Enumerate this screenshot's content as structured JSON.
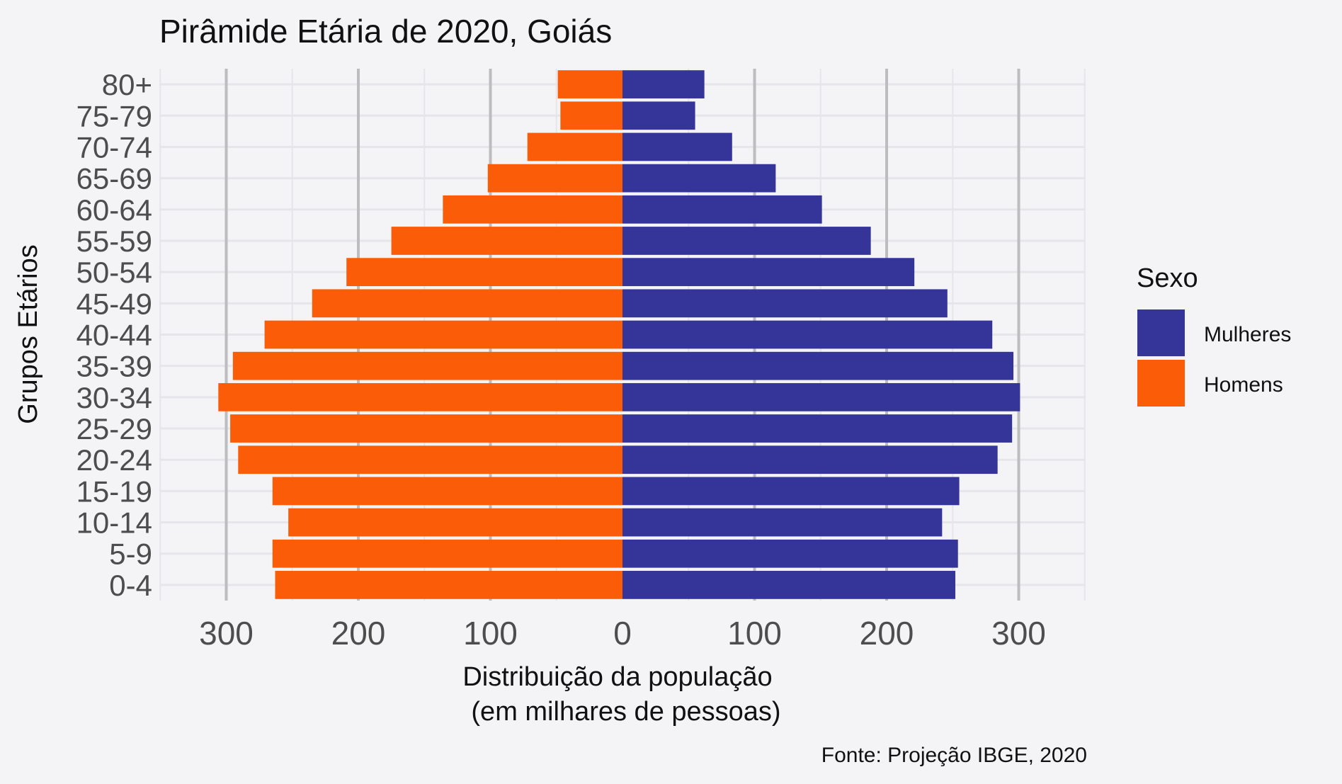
{
  "chart_data": {
    "type": "bar",
    "orientation": "horizontal",
    "title": "Pirâmide Etária de 2020, Goiás",
    "xlabel_line1": "Distribuição da população",
    "xlabel_line2": "(em milhares de pessoas)",
    "ylabel": "Grupos Etários",
    "caption": "Fonte: Projeção IBGE, 2020",
    "xlim": [
      -350,
      350
    ],
    "xticks": [
      -300,
      -200,
      -100,
      0,
      100,
      200,
      300
    ],
    "xtick_labels": [
      "300",
      "200",
      "100",
      "0",
      "100",
      "200",
      "300"
    ],
    "grid": true,
    "legend_position": "right",
    "legend_title": "Sexo",
    "categories": [
      "0-4",
      "5-9",
      "10-14",
      "15-19",
      "20-24",
      "25-29",
      "30-34",
      "35-39",
      "40-44",
      "45-49",
      "50-54",
      "55-59",
      "60-64",
      "65-69",
      "70-74",
      "75-79",
      "80+"
    ],
    "series": [
      {
        "name": "Mulheres",
        "color": "#343499",
        "direction": "right",
        "values": [
          252,
          254,
          242,
          255,
          284,
          295,
          301,
          296,
          280,
          246,
          221,
          188,
          151,
          116,
          83,
          55,
          62
        ]
      },
      {
        "name": "Homens",
        "color": "#fa5c08",
        "direction": "left",
        "values": [
          263,
          265,
          253,
          265,
          291,
          297,
          306,
          295,
          271,
          235,
          209,
          175,
          136,
          102,
          72,
          47,
          49
        ]
      }
    ]
  }
}
